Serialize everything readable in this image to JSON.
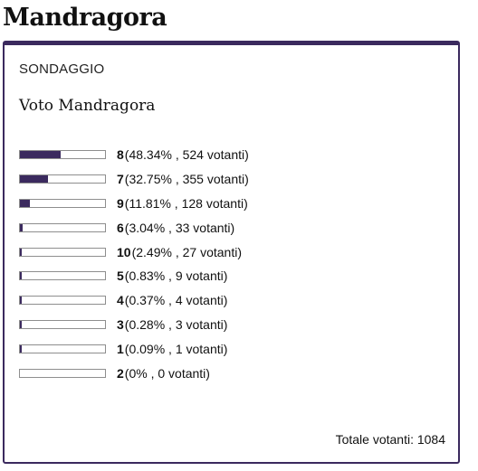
{
  "page": {
    "title": "Mandragora"
  },
  "poll": {
    "section_label": "SONDAGGIO",
    "question": "Voto Mandragora",
    "bar_color": "#3b2a5e",
    "options": [
      {
        "value": "8",
        "detail": "(48.34% , 524 votanti)",
        "share": 0.4834
      },
      {
        "value": "7",
        "detail": "(32.75% , 355 votanti)",
        "share": 0.3275
      },
      {
        "value": "9",
        "detail": "(11.81% , 128 votanti)",
        "share": 0.1181
      },
      {
        "value": "6",
        "detail": "(3.04% , 33 votanti)",
        "share": 0.0304
      },
      {
        "value": "10",
        "detail": "(2.49% , 27 votanti)",
        "share": 0.0249
      },
      {
        "value": "5",
        "detail": "(0.83% , 9 votanti)",
        "share": 0.0083
      },
      {
        "value": "4",
        "detail": "(0.37% , 4 votanti)",
        "share": 0.0037
      },
      {
        "value": "3",
        "detail": "(0.28% , 3 votanti)",
        "share": 0.0028
      },
      {
        "value": "1",
        "detail": "(0.09% , 1 votanti)",
        "share": 0.0009
      },
      {
        "value": "2",
        "detail": "(0% , 0 votanti)",
        "share": 0
      }
    ],
    "total_label": "Totale votanti: 1084"
  }
}
